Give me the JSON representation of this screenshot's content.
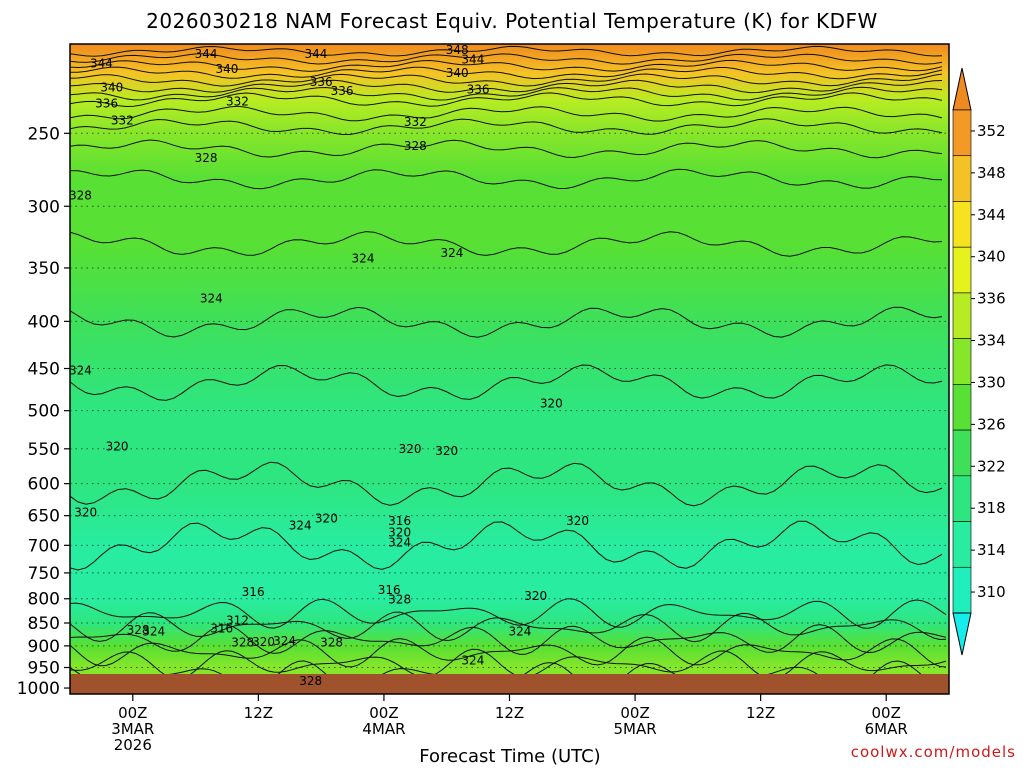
{
  "chart_data": {
    "type": "heatmap",
    "title": "2026030218 NAM Forecast Equiv. Potential Temperature (K) for KDFW",
    "xlabel": "Forecast Time (UTC)",
    "ylabel": "",
    "credit": "coolwx.com/models",
    "x_hours_range": [
      0,
      84
    ],
    "x_ticks": [
      {
        "hour": 6,
        "lines": [
          "00Z",
          "3MAR",
          "2026"
        ]
      },
      {
        "hour": 18,
        "lines": [
          "12Z"
        ]
      },
      {
        "hour": 30,
        "lines": [
          "00Z",
          "4MAR"
        ]
      },
      {
        "hour": 42,
        "lines": [
          "12Z"
        ]
      },
      {
        "hour": 54,
        "lines": [
          "00Z",
          "5MAR"
        ]
      },
      {
        "hour": 66,
        "lines": [
          "12Z"
        ]
      },
      {
        "hour": 78,
        "lines": [
          "00Z",
          "6MAR"
        ]
      }
    ],
    "y_pressure_range_hPa": [
      200,
      1015
    ],
    "y_ticks": [
      250,
      300,
      350,
      400,
      450,
      500,
      550,
      600,
      650,
      700,
      750,
      800,
      850,
      900,
      950,
      1000
    ],
    "colorbar": {
      "ticks": [
        310,
        314,
        318,
        322,
        326,
        330,
        334,
        336,
        340,
        344,
        348,
        352
      ],
      "colors": [
        "#16ecec",
        "#20eebc",
        "#28eca0",
        "#2ee680",
        "#3ee05a",
        "#58e034",
        "#86e62a",
        "#b8ec22",
        "#e6f21c",
        "#f6e21e",
        "#f5c225",
        "#f29a25",
        "#ef8a20"
      ]
    },
    "contour_interval_K": 2,
    "profile": [
      {
        "p": 200,
        "theta_e": 352
      },
      {
        "p": 215,
        "theta_e": 344
      },
      {
        "p": 230,
        "theta_e": 336
      },
      {
        "p": 250,
        "theta_e": 331
      },
      {
        "p": 280,
        "theta_e": 328
      },
      {
        "p": 330,
        "theta_e": 326
      },
      {
        "p": 400,
        "theta_e": 324
      },
      {
        "p": 500,
        "theta_e": 321
      },
      {
        "p": 600,
        "theta_e": 320
      },
      {
        "p": 700,
        "theta_e": 318
      },
      {
        "p": 800,
        "theta_e": 318
      },
      {
        "p": 850,
        "theta_e": 322
      },
      {
        "p": 900,
        "theta_e": 328
      },
      {
        "p": 950,
        "theta_e": 330
      },
      {
        "p": 1000,
        "theta_e": 330
      }
    ],
    "contour_labels": [
      {
        "text": "344",
        "hour": 3.0,
        "p": 210
      },
      {
        "text": "340",
        "hour": 4.0,
        "p": 223
      },
      {
        "text": "336",
        "hour": 3.5,
        "p": 232
      },
      {
        "text": "332",
        "hour": 5.0,
        "p": 242
      },
      {
        "text": "328",
        "hour": 1.0,
        "p": 292
      },
      {
        "text": "340",
        "hour": 15.0,
        "p": 213
      },
      {
        "text": "344",
        "hour": 13.0,
        "p": 205
      },
      {
        "text": "336",
        "hour": 26.0,
        "p": 225
      },
      {
        "text": "332",
        "hour": 16.0,
        "p": 231
      },
      {
        "text": "328",
        "hour": 13.0,
        "p": 266
      },
      {
        "text": "324",
        "hour": 13.5,
        "p": 378
      },
      {
        "text": "324",
        "hour": 1.0,
        "p": 452
      },
      {
        "text": "320",
        "hour": 4.5,
        "p": 547
      },
      {
        "text": "320",
        "hour": 1.5,
        "p": 645
      },
      {
        "text": "328",
        "hour": 6.5,
        "p": 865
      },
      {
        "text": "324",
        "hour": 8.0,
        "p": 868
      },
      {
        "text": "316",
        "hour": 17.5,
        "p": 787
      },
      {
        "text": "312",
        "hour": 16.0,
        "p": 845
      },
      {
        "text": "316",
        "hour": 14.5,
        "p": 862
      },
      {
        "text": "328",
        "hour": 16.5,
        "p": 892
      },
      {
        "text": "320",
        "hour": 18.5,
        "p": 891
      },
      {
        "text": "324",
        "hour": 20.5,
        "p": 889
      },
      {
        "text": "328",
        "hour": 25.0,
        "p": 892
      },
      {
        "text": "324",
        "hour": 22.0,
        "p": 666
      },
      {
        "text": "320",
        "hour": 24.5,
        "p": 655
      },
      {
        "text": "344",
        "hour": 23.5,
        "p": 205
      },
      {
        "text": "336",
        "hour": 24.0,
        "p": 220
      },
      {
        "text": "332",
        "hour": 33.0,
        "p": 243
      },
      {
        "text": "328",
        "hour": 33.0,
        "p": 258
      },
      {
        "text": "348",
        "hour": 37.0,
        "p": 203
      },
      {
        "text": "344",
        "hour": 38.5,
        "p": 208
      },
      {
        "text": "340",
        "hour": 37.0,
        "p": 215
      },
      {
        "text": "336",
        "hour": 39.0,
        "p": 224
      },
      {
        "text": "324",
        "hour": 28.0,
        "p": 342
      },
      {
        "text": "324",
        "hour": 36.5,
        "p": 337
      },
      {
        "text": "320",
        "hour": 32.5,
        "p": 550
      },
      {
        "text": "320",
        "hour": 36.0,
        "p": 553
      },
      {
        "text": "316",
        "hour": 30.5,
        "p": 783
      },
      {
        "text": "316",
        "hour": 31.5,
        "p": 659
      },
      {
        "text": "320",
        "hour": 31.5,
        "p": 678
      },
      {
        "text": "324",
        "hour": 31.5,
        "p": 695
      },
      {
        "text": "328",
        "hour": 31.5,
        "p": 802
      },
      {
        "text": "320",
        "hour": 46.0,
        "p": 491
      },
      {
        "text": "320",
        "hour": 48.5,
        "p": 659
      },
      {
        "text": "320",
        "hour": 44.5,
        "p": 795
      },
      {
        "text": "324",
        "hour": 43.0,
        "p": 868
      },
      {
        "text": "324",
        "hour": 38.5,
        "p": 934
      },
      {
        "text": "328",
        "hour": 23.0,
        "p": 983
      }
    ]
  }
}
